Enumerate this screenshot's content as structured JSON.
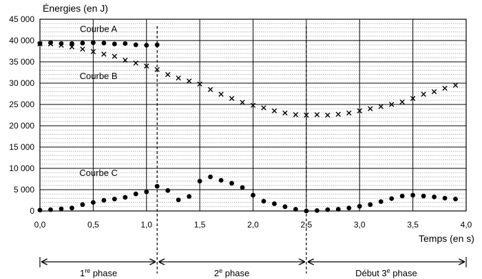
{
  "chart_data": {
    "type": "scatter",
    "ylabel": "Énergies (en J)",
    "xlabel": "Temps (en s)",
    "xlim": [
      0,
      4
    ],
    "ylim": [
      0,
      45000
    ],
    "x_ticks": [
      0,
      0.5,
      1,
      1.5,
      2,
      2.5,
      3,
      3.5,
      4
    ],
    "x_tick_labels": [
      "0,0",
      "0,5",
      "1,0",
      "1,5",
      "2,0",
      "2,5",
      "3,0",
      "3,5",
      "4,0"
    ],
    "y_ticks": [
      0,
      5000,
      10000,
      15000,
      20000,
      25000,
      30000,
      35000,
      40000,
      45000
    ],
    "y_tick_labels": [
      "0",
      "5 000",
      "10 000",
      "15 000",
      "20 000",
      "25 000",
      "30 000",
      "35 000",
      "40 000",
      "45 000"
    ],
    "grid": "horizontal minor lines every 1 000 J, major lines every 5 000 J, vertical lines every 0,5 s",
    "series": [
      {
        "name": "Courbe A",
        "marker": "filled-circle",
        "points": [
          [
            0.0,
            39300
          ],
          [
            0.1,
            39500
          ],
          [
            0.2,
            39300
          ],
          [
            0.3,
            39300
          ],
          [
            0.4,
            39400
          ],
          [
            0.5,
            39500
          ],
          [
            0.6,
            39400
          ],
          [
            0.7,
            39200
          ],
          [
            0.8,
            39300
          ],
          [
            0.9,
            39000
          ],
          [
            1.0,
            38900
          ],
          [
            1.1,
            39000
          ]
        ]
      },
      {
        "name": "Courbe B",
        "marker": "cross",
        "points": [
          [
            0.0,
            39200
          ],
          [
            0.1,
            39200
          ],
          [
            0.2,
            38900
          ],
          [
            0.3,
            38500
          ],
          [
            0.4,
            38000
          ],
          [
            0.5,
            37400
          ],
          [
            0.6,
            36800
          ],
          [
            0.7,
            36300
          ],
          [
            0.8,
            35400
          ],
          [
            0.9,
            34700
          ],
          [
            1.0,
            34000
          ],
          [
            1.1,
            33200
          ],
          [
            1.2,
            32000
          ],
          [
            1.3,
            31200
          ],
          [
            1.4,
            30500
          ],
          [
            1.5,
            29800
          ],
          [
            1.6,
            28500
          ],
          [
            1.7,
            27400
          ],
          [
            1.8,
            26400
          ],
          [
            1.9,
            25500
          ],
          [
            2.0,
            24800
          ],
          [
            2.1,
            24200
          ],
          [
            2.2,
            23500
          ],
          [
            2.3,
            23000
          ],
          [
            2.4,
            22600
          ],
          [
            2.5,
            22500
          ],
          [
            2.6,
            22600
          ],
          [
            2.7,
            22500
          ],
          [
            2.8,
            22700
          ],
          [
            2.9,
            23000
          ],
          [
            3.0,
            23500
          ],
          [
            3.1,
            24000
          ],
          [
            3.2,
            24500
          ],
          [
            3.3,
            25000
          ],
          [
            3.4,
            25600
          ],
          [
            3.5,
            26400
          ],
          [
            3.6,
            27400
          ],
          [
            3.7,
            28000
          ],
          [
            3.8,
            28800
          ],
          [
            3.9,
            29500
          ]
        ]
      },
      {
        "name": "Courbe C",
        "marker": "filled-circle",
        "points": [
          [
            0.0,
            200
          ],
          [
            0.1,
            300
          ],
          [
            0.2,
            500
          ],
          [
            0.3,
            700
          ],
          [
            0.4,
            1500
          ],
          [
            0.5,
            2000
          ],
          [
            0.6,
            2500
          ],
          [
            0.7,
            2800
          ],
          [
            0.8,
            3200
          ],
          [
            0.9,
            4000
          ],
          [
            1.0,
            4500
          ],
          [
            1.1,
            5800
          ],
          [
            1.2,
            4800
          ],
          [
            1.3,
            2600
          ],
          [
            1.4,
            3400
          ],
          [
            1.5,
            7000
          ],
          [
            1.6,
            8000
          ],
          [
            1.7,
            7200
          ],
          [
            1.8,
            6500
          ],
          [
            1.9,
            5500
          ],
          [
            2.0,
            3700
          ],
          [
            2.1,
            2300
          ],
          [
            2.2,
            1700
          ],
          [
            2.3,
            1000
          ],
          [
            2.4,
            400
          ],
          [
            2.5,
            0
          ],
          [
            2.6,
            100
          ],
          [
            2.7,
            300
          ],
          [
            2.8,
            400
          ],
          [
            2.9,
            700
          ],
          [
            3.0,
            1100
          ],
          [
            3.1,
            1500
          ],
          [
            3.2,
            2200
          ],
          [
            3.3,
            2900
          ],
          [
            3.4,
            3500
          ],
          [
            3.5,
            3700
          ],
          [
            3.6,
            3500
          ],
          [
            3.7,
            3300
          ],
          [
            3.8,
            3000
          ],
          [
            3.9,
            2800
          ]
        ]
      }
    ],
    "dashed_verticals": [
      1.1,
      2.5
    ],
    "phases": [
      {
        "label_prefix": "1",
        "label_sup": "re",
        "label_suffix": " phase",
        "from": 0,
        "to": 1.1
      },
      {
        "label_prefix": "2",
        "label_sup": "e",
        "label_suffix": " phase",
        "from": 1.1,
        "to": 2.5
      },
      {
        "label_prefix": "Début 3",
        "label_sup": "e",
        "label_suffix": " phase",
        "from": 2.5,
        "to": 4.0
      }
    ],
    "annotations": [
      {
        "text": "Courbe A",
        "x": 0.55,
        "y": 42000
      },
      {
        "text": "Courbe B",
        "x": 0.55,
        "y": 31000
      },
      {
        "text": "Courbe C",
        "x": 0.55,
        "y": 8200
      }
    ]
  }
}
